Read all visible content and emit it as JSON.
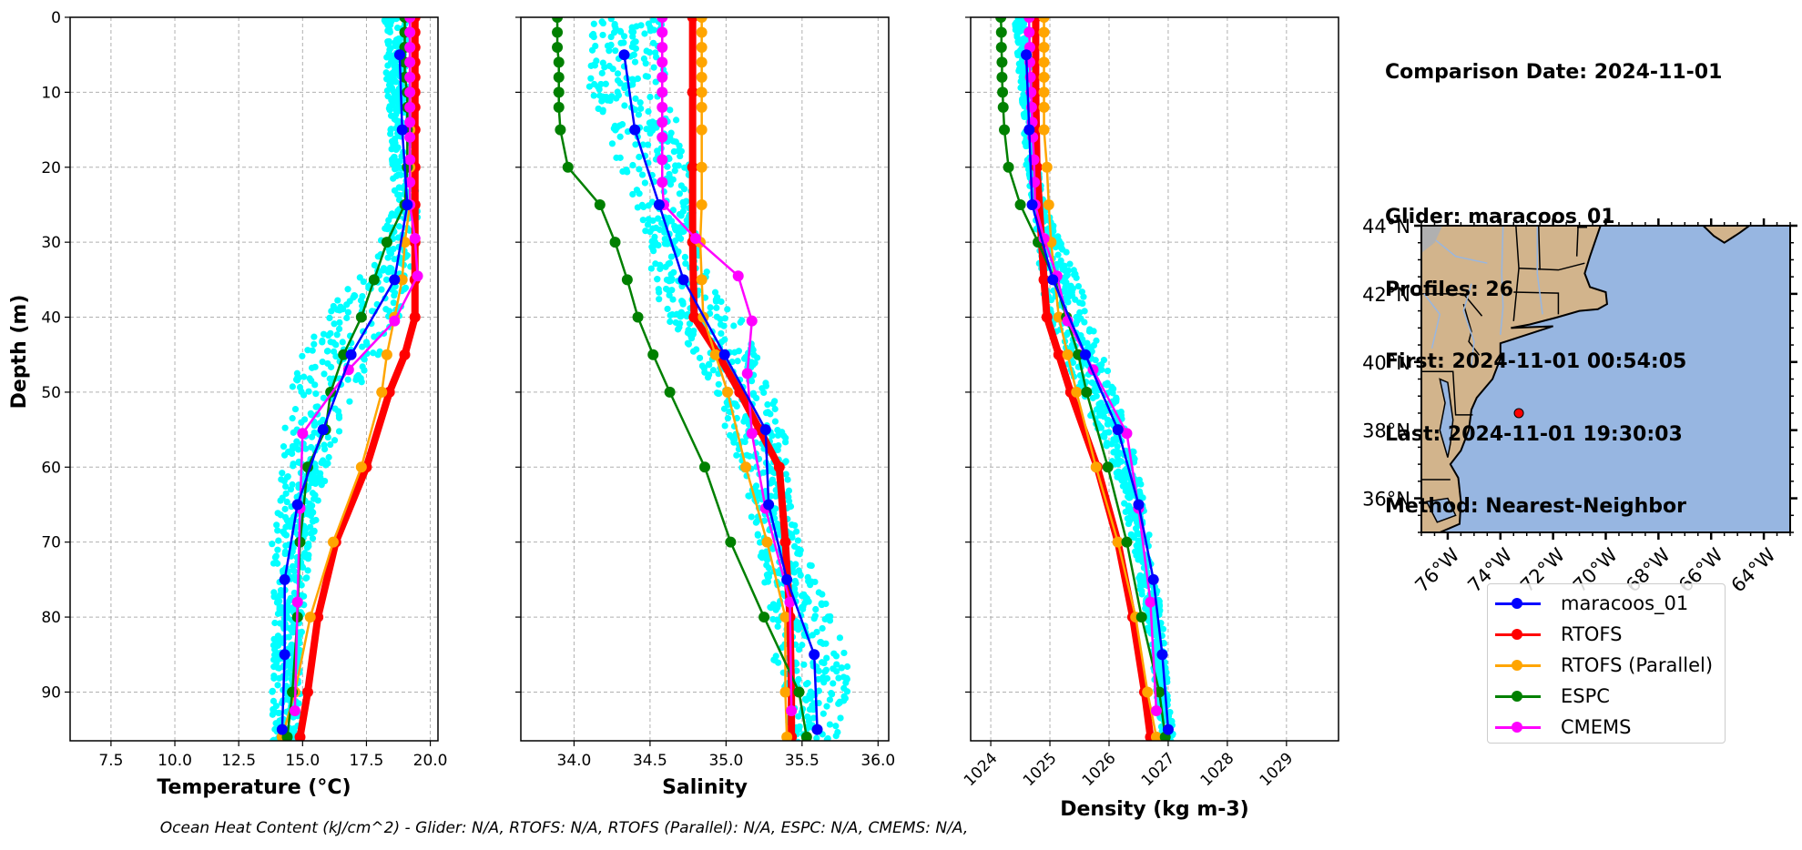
{
  "info": {
    "comparison_date": "Comparison Date: 2024-11-01",
    "glider": "Glider: maracoos_01",
    "profiles": "Profiles: 26",
    "first": "First: 2024-11-01 00:54:05",
    "last": "Last: 2024-11-01 19:30:03",
    "method": "Method: Nearest-Neighbor"
  },
  "footer": "Ocean Heat Content (kJ/cm^2) - Glider: N/A,  RTOFS: N/A,  RTOFS (Parallel): N/A,  ESPC: N/A,  CMEMS: N/A,",
  "legend": [
    {
      "name": "maracoos_01",
      "color": "#0000ff"
    },
    {
      "name": "RTOFS",
      "color": "#ff0000"
    },
    {
      "name": "RTOFS (Parallel)",
      "color": "#ffa500"
    },
    {
      "name": "ESPC",
      "color": "#008000"
    },
    {
      "name": "CMEMS",
      "color": "#ff00ff"
    }
  ],
  "colors": {
    "glider_raw": "#00ffff",
    "land": "#d2b48c",
    "ocean": "#97b6e1",
    "glider_marker": "#ff0000"
  },
  "chart_data": [
    {
      "type": "line",
      "title": "",
      "xlabel": "Temperature (°C)",
      "ylabel": "Depth (m)",
      "xlim": [
        5.9,
        20.3
      ],
      "ylim": [
        96.5,
        0
      ],
      "xticks": [
        "7.5",
        "10.0",
        "12.5",
        "15.0",
        "17.5",
        "20.0"
      ],
      "xtick_values": [
        7.5,
        10.0,
        12.5,
        15.0,
        17.5,
        20.0
      ],
      "yticks": [
        "0",
        "10",
        "20",
        "30",
        "40",
        "50",
        "60",
        "70",
        "80",
        "90"
      ],
      "ytick_values": [
        0,
        10,
        20,
        30,
        40,
        50,
        60,
        70,
        80,
        90
      ],
      "grid": true,
      "scatter_band": {
        "name": "glider profiles",
        "depth": [
          0,
          10,
          20,
          25,
          30,
          35,
          40,
          45,
          50,
          55,
          60,
          70,
          80,
          90,
          96
        ],
        "min": [
          18.2,
          18.3,
          18.5,
          18.6,
          18.0,
          17.0,
          15.8,
          15.0,
          14.5,
          14.3,
          14.2,
          13.8,
          13.9,
          13.8,
          13.8
        ],
        "max": [
          19.1,
          19.2,
          19.4,
          19.5,
          19.6,
          19.4,
          18.8,
          18.0,
          17.2,
          16.5,
          16.0,
          15.4,
          15.0,
          14.9,
          14.8
        ]
      },
      "series": [
        {
          "name": "maracoos_01",
          "depth": [
            5,
            15,
            25,
            35,
            45,
            55,
            65,
            75,
            85,
            95
          ],
          "values": [
            18.8,
            18.9,
            19.1,
            18.6,
            16.9,
            15.8,
            14.8,
            14.3,
            14.3,
            14.2
          ]
        },
        {
          "name": "RTOFS",
          "depth": [
            0,
            2,
            4,
            6,
            8,
            10,
            12,
            15,
            20,
            25,
            30,
            35,
            40,
            45,
            50,
            60,
            70,
            80,
            90,
            96
          ],
          "values": [
            19.4,
            19.4,
            19.4,
            19.4,
            19.4,
            19.4,
            19.4,
            19.4,
            19.4,
            19.4,
            19.4,
            19.4,
            19.4,
            19.0,
            18.4,
            17.5,
            16.3,
            15.6,
            15.2,
            14.9
          ]
        },
        {
          "name": "RTOFS (Parallel)",
          "depth": [
            0,
            2,
            4,
            6,
            8,
            10,
            12,
            15,
            20,
            25,
            30,
            35,
            40,
            45,
            50,
            60,
            70,
            80,
            90,
            96
          ],
          "values": [
            19.2,
            19.2,
            19.2,
            19.2,
            19.2,
            19.2,
            19.2,
            19.2,
            19.2,
            19.2,
            19.0,
            18.9,
            18.6,
            18.3,
            18.1,
            17.3,
            16.2,
            15.3,
            14.7,
            14.2
          ]
        },
        {
          "name": "ESPC",
          "depth": [
            0,
            2,
            4,
            6,
            8,
            10,
            12,
            15,
            20,
            25,
            30,
            35,
            40,
            45,
            50,
            55,
            60,
            70,
            80,
            90,
            96
          ],
          "values": [
            19.0,
            19.0,
            19.0,
            19.0,
            19.0,
            19.1,
            19.1,
            19.1,
            19.1,
            19.0,
            18.3,
            17.8,
            17.3,
            16.6,
            16.1,
            15.9,
            15.2,
            14.9,
            14.8,
            14.6,
            14.4
          ]
        },
        {
          "name": "CMEMS",
          "depth": [
            0,
            2,
            4,
            6,
            8,
            10,
            12,
            14,
            16,
            19,
            22,
            25,
            29.5,
            34.5,
            40.5,
            47,
            55.5,
            65.5,
            78,
            92.5
          ],
          "values": [
            19.2,
            19.2,
            19.2,
            19.2,
            19.2,
            19.2,
            19.2,
            19.2,
            19.2,
            19.2,
            19.2,
            19.2,
            19.4,
            19.5,
            18.6,
            16.8,
            15.0,
            14.9,
            14.8,
            14.7
          ]
        }
      ]
    },
    {
      "type": "line",
      "title": "",
      "xlabel": "Salinity",
      "ylabel": "",
      "xlim": [
        33.65,
        36.07
      ],
      "ylim": [
        96.5,
        0
      ],
      "xticks": [
        "34.0",
        "34.5",
        "35.0",
        "35.5",
        "36.0"
      ],
      "xtick_values": [
        34.0,
        34.5,
        35.0,
        35.5,
        36.0
      ],
      "grid": true,
      "scatter_band": {
        "name": "glider profiles",
        "depth": [
          0,
          10,
          20,
          25,
          30,
          35,
          40,
          45,
          50,
          55,
          60,
          70,
          80,
          85,
          90,
          96
        ],
        "min": [
          34.1,
          34.1,
          34.3,
          34.4,
          34.5,
          34.5,
          34.6,
          34.8,
          34.9,
          35.0,
          35.1,
          35.2,
          35.3,
          35.3,
          35.4,
          35.4
        ],
        "max": [
          34.6,
          34.6,
          34.8,
          34.8,
          34.8,
          34.9,
          35.1,
          35.2,
          35.3,
          35.4,
          35.4,
          35.5,
          35.7,
          35.8,
          35.8,
          35.75
        ]
      },
      "series": [
        {
          "name": "maracoos_01",
          "depth": [
            5,
            15,
            25,
            35,
            45,
            55,
            65,
            75,
            85,
            95
          ],
          "values": [
            34.33,
            34.4,
            34.56,
            34.72,
            34.99,
            35.26,
            35.28,
            35.4,
            35.58,
            35.6
          ]
        },
        {
          "name": "RTOFS",
          "depth": [
            0,
            10,
            20,
            30,
            40,
            45,
            50,
            55,
            60,
            70,
            80,
            90,
            96
          ],
          "values": [
            34.78,
            34.78,
            34.78,
            34.78,
            34.79,
            34.95,
            35.09,
            35.22,
            35.35,
            35.39,
            35.42,
            35.43,
            35.43
          ]
        },
        {
          "name": "RTOFS (Parallel)",
          "depth": [
            0,
            2,
            4,
            6,
            8,
            10,
            12,
            15,
            20,
            25,
            30,
            35,
            40,
            45,
            50,
            60,
            70,
            80,
            90,
            96
          ],
          "values": [
            34.84,
            34.84,
            34.84,
            34.84,
            34.84,
            34.84,
            34.84,
            34.84,
            34.84,
            34.84,
            34.83,
            34.84,
            34.85,
            34.93,
            35.01,
            35.13,
            35.27,
            35.39,
            35.39,
            35.4
          ]
        },
        {
          "name": "ESPC",
          "depth": [
            0,
            2,
            4,
            6,
            8,
            10,
            12,
            15,
            20,
            25,
            30,
            35,
            40,
            45,
            50,
            60,
            70,
            80,
            90,
            96
          ],
          "values": [
            33.89,
            33.89,
            33.89,
            33.9,
            33.9,
            33.9,
            33.9,
            33.91,
            33.96,
            34.17,
            34.27,
            34.35,
            34.42,
            34.52,
            34.63,
            34.86,
            35.03,
            35.25,
            35.48,
            35.53
          ]
        },
        {
          "name": "CMEMS",
          "depth": [
            0,
            2,
            4,
            6,
            8,
            10,
            12,
            14,
            16,
            19,
            22,
            25,
            29.5,
            34.5,
            40.5,
            47.5,
            55.5,
            65.5,
            78,
            92.5
          ],
          "values": [
            34.58,
            34.58,
            34.58,
            34.58,
            34.58,
            34.58,
            34.58,
            34.58,
            34.58,
            34.58,
            34.58,
            34.59,
            34.8,
            35.08,
            35.17,
            35.14,
            35.17,
            35.26,
            35.42,
            35.43
          ]
        }
      ]
    },
    {
      "type": "line",
      "title": "",
      "xlabel": "Density (kg m-3)",
      "ylabel": "",
      "xlim": [
        1023.66,
        1029.88
      ],
      "ylim": [
        96.5,
        0
      ],
      "xticks": [
        "1024",
        "1025",
        "1026",
        "1027",
        "1028",
        "1029"
      ],
      "xtick_values": [
        1024,
        1025,
        1026,
        1027,
        1028,
        1029
      ],
      "grid": true,
      "scatter_band": {
        "name": "glider profiles",
        "depth": [
          0,
          10,
          20,
          25,
          30,
          35,
          40,
          45,
          50,
          55,
          60,
          70,
          80,
          90,
          96
        ],
        "min": [
          1024.4,
          1024.5,
          1024.6,
          1024.7,
          1024.8,
          1024.8,
          1025.0,
          1025.2,
          1025.5,
          1025.8,
          1026.1,
          1026.4,
          1026.6,
          1026.8,
          1026.9
        ],
        "max": [
          1024.6,
          1024.7,
          1024.8,
          1024.9,
          1025.2,
          1025.5,
          1025.7,
          1025.9,
          1026.1,
          1026.3,
          1026.5,
          1026.7,
          1026.9,
          1027.0,
          1027.1
        ]
      },
      "series": [
        {
          "name": "maracoos_01",
          "depth": [
            5,
            15,
            25,
            35,
            45,
            55,
            65,
            75,
            85,
            95
          ],
          "values": [
            1024.6,
            1024.65,
            1024.7,
            1025.05,
            1025.6,
            1026.15,
            1026.5,
            1026.75,
            1026.9,
            1027.0
          ]
        },
        {
          "name": "RTOFS",
          "depth": [
            0,
            10,
            20,
            30,
            35,
            40,
            45,
            50,
            60,
            70,
            80,
            90,
            96
          ],
          "values": [
            1024.76,
            1024.76,
            1024.78,
            1024.86,
            1024.9,
            1024.95,
            1025.15,
            1025.35,
            1025.8,
            1026.15,
            1026.4,
            1026.6,
            1026.7
          ]
        },
        {
          "name": "RTOFS (Parallel)",
          "depth": [
            0,
            2,
            4,
            6,
            8,
            10,
            12,
            15,
            20,
            25,
            30,
            40,
            45,
            50,
            60,
            70,
            80,
            90,
            96
          ],
          "values": [
            1024.9,
            1024.9,
            1024.9,
            1024.9,
            1024.9,
            1024.9,
            1024.9,
            1024.9,
            1024.95,
            1024.98,
            1025.02,
            1025.15,
            1025.3,
            1025.45,
            1025.78,
            1026.15,
            1026.45,
            1026.65,
            1026.8
          ]
        },
        {
          "name": "ESPC",
          "depth": [
            0,
            2,
            4,
            6,
            8,
            10,
            12,
            15,
            20,
            25,
            30,
            35,
            40,
            45,
            50,
            60,
            70,
            80,
            90,
            96
          ],
          "values": [
            1024.17,
            1024.18,
            1024.18,
            1024.19,
            1024.19,
            1024.2,
            1024.21,
            1024.23,
            1024.3,
            1024.5,
            1024.8,
            1025.08,
            1025.28,
            1025.48,
            1025.62,
            1025.98,
            1026.3,
            1026.55,
            1026.85,
            1026.95
          ]
        },
        {
          "name": "CMEMS",
          "depth": [
            0,
            2,
            4,
            6,
            8,
            10,
            12,
            14,
            16,
            19,
            22,
            25,
            29.5,
            34.5,
            40.5,
            47,
            55.5,
            65.5,
            78,
            92.5
          ],
          "values": [
            1024.65,
            1024.65,
            1024.66,
            1024.66,
            1024.67,
            1024.68,
            1024.69,
            1024.7,
            1024.71,
            1024.73,
            1024.74,
            1024.75,
            1024.9,
            1025.12,
            1025.3,
            1025.73,
            1026.3,
            1026.5,
            1026.7,
            1026.8
          ]
        }
      ]
    },
    {
      "type": "map",
      "xticks": [
        "76°W",
        "74°W",
        "72°W",
        "70°W",
        "68°W",
        "66°W",
        "64°W"
      ],
      "xtick_values": [
        -76,
        -74,
        -72,
        -70,
        -68,
        -66,
        -64
      ],
      "yticks": [
        "36°N",
        "38°N",
        "40°N",
        "42°N",
        "44°N"
      ],
      "ytick_values": [
        36,
        38,
        40,
        42,
        44
      ],
      "xlim": [
        -77,
        -63
      ],
      "ylim": [
        35,
        44
      ],
      "glider_location": {
        "lon": -73.3,
        "lat": 38.5
      }
    }
  ]
}
